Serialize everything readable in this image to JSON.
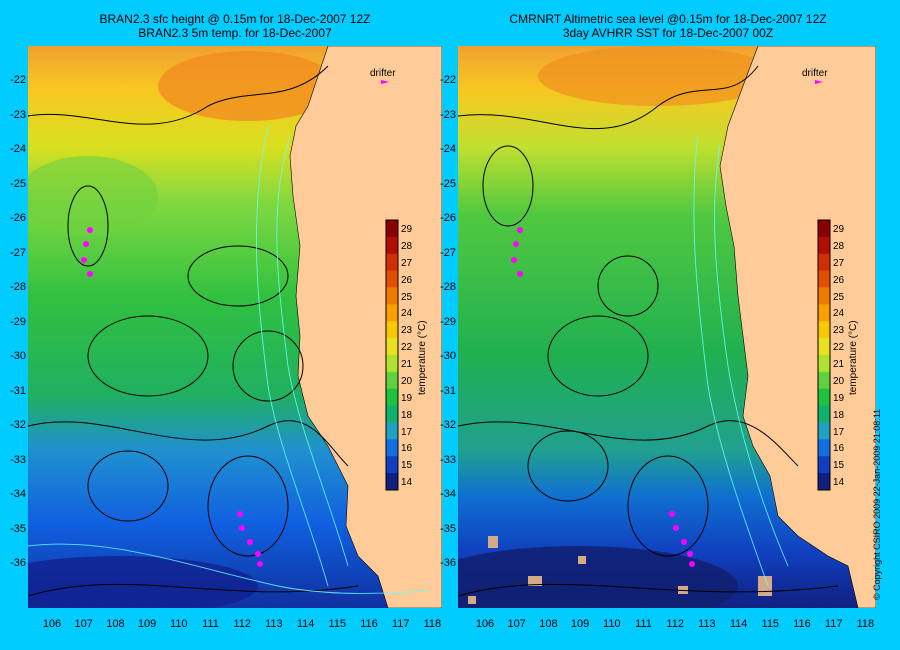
{
  "left_panel": {
    "title_line1": "BRAN2.3 sfc height @ 0.15m for 18-Dec-2007 12Z",
    "title_line2": "BRAN2.3 5m temp. for 18-Dec-2007",
    "drifter_label": "drifter"
  },
  "right_panel": {
    "title_line1": "CMRNRT Altimetric sea level  @0.15m  for 18-Dec-2007 12Z",
    "title_line2": "3day AVHRR SST for 18-Dec-2007 00Z",
    "drifter_label": "drifter"
  },
  "axes": {
    "lat_ticks": [
      "-22",
      "-23",
      "-24",
      "-25",
      "-26",
      "-27",
      "-28",
      "-29",
      "-30",
      "-31",
      "-32",
      "-33",
      "-34",
      "-35",
      "-36"
    ],
    "lon_ticks": [
      "106",
      "107",
      "108",
      "109",
      "110",
      "111",
      "112",
      "113",
      "114",
      "115",
      "116",
      "117",
      "118"
    ]
  },
  "colorbar": {
    "label": "temperature (°C)",
    "ticks": [
      "29",
      "28",
      "27",
      "26",
      "25",
      "24",
      "23",
      "22",
      "21",
      "20",
      "19",
      "18",
      "17",
      "16",
      "15",
      "14"
    ],
    "colors": [
      "#8b0000",
      "#b01000",
      "#d03000",
      "#e05000",
      "#f07a00",
      "#f8a000",
      "#f8c800",
      "#e8e020",
      "#b0e030",
      "#60d040",
      "#20c040",
      "#10b070",
      "#20a0c0",
      "#1070e0",
      "#1040c0",
      "#102080"
    ]
  },
  "copyright": "© Copyright CSIRO 2009   22-Jan-2009 21:08:11",
  "colors": {
    "background": "#00ccff",
    "land": "#ffcc99",
    "drifter": "#ff00ff",
    "contour": "#000000",
    "bathymetry": "#66ffff"
  }
}
